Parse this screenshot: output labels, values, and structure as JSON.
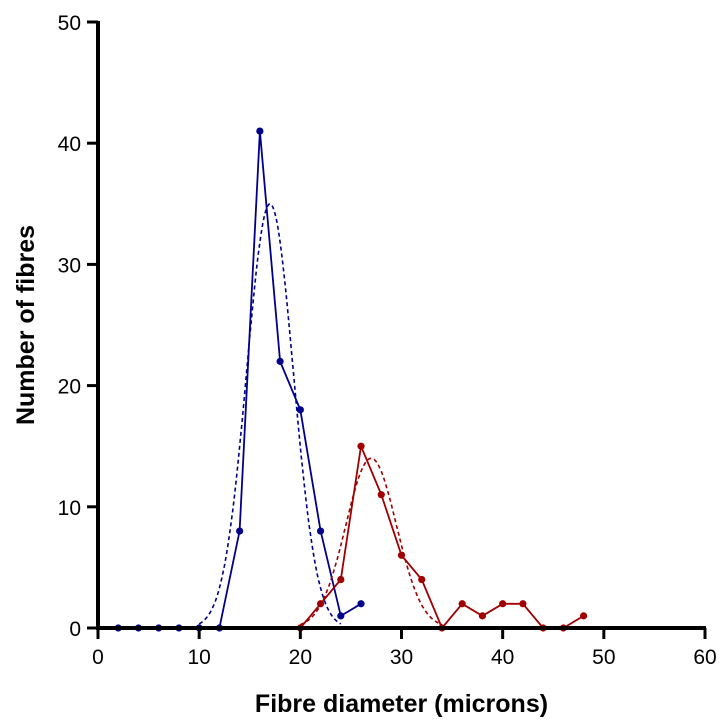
{
  "chart_data": {
    "type": "line",
    "title": "",
    "xlabel": "Fibre diameter (microns)",
    "ylabel": "Number of fibres",
    "xlim": [
      0,
      60
    ],
    "ylim": [
      0,
      50
    ],
    "xticks": [
      0,
      10,
      20,
      30,
      40,
      50,
      60
    ],
    "yticks": [
      0,
      10,
      20,
      30,
      40,
      50
    ],
    "xtick_labels": [
      "0",
      "10",
      "20",
      "30",
      "40",
      "50",
      "60"
    ],
    "ytick_labels": [
      "0",
      "10",
      "20",
      "30",
      "40",
      "50"
    ],
    "grid": false,
    "legend": "none",
    "series": [
      {
        "color": "#00008b",
        "style": "solid-with-markers",
        "points": [
          [
            2,
            0
          ],
          [
            4,
            0
          ],
          [
            6,
            0
          ],
          [
            8,
            0
          ],
          [
            10,
            0
          ],
          [
            12,
            0
          ],
          [
            14,
            8
          ],
          [
            16,
            41
          ],
          [
            18,
            22
          ],
          [
            20,
            18
          ],
          [
            22,
            8
          ],
          [
            24,
            1
          ],
          [
            26,
            2
          ]
        ]
      },
      {
        "color": "#00008b",
        "style": "dashed-fit",
        "peak_x": 17,
        "peak_y": 35,
        "sigma": 2.3,
        "x_range": [
          10,
          24
        ]
      },
      {
        "color": "#a00000",
        "style": "solid-with-markers",
        "points": [
          [
            20,
            0
          ],
          [
            22,
            2
          ],
          [
            24,
            4
          ],
          [
            26,
            15
          ],
          [
            28,
            11
          ],
          [
            30,
            6
          ],
          [
            32,
            4
          ],
          [
            34,
            0
          ],
          [
            36,
            2
          ],
          [
            38,
            1
          ],
          [
            40,
            2
          ],
          [
            42,
            2
          ],
          [
            44,
            0
          ],
          [
            46,
            0
          ],
          [
            48,
            1
          ]
        ]
      },
      {
        "color": "#a00000",
        "style": "dashed-fit",
        "peak_x": 27,
        "peak_y": 14,
        "sigma": 2.5,
        "x_range": [
          20,
          34
        ]
      }
    ]
  }
}
